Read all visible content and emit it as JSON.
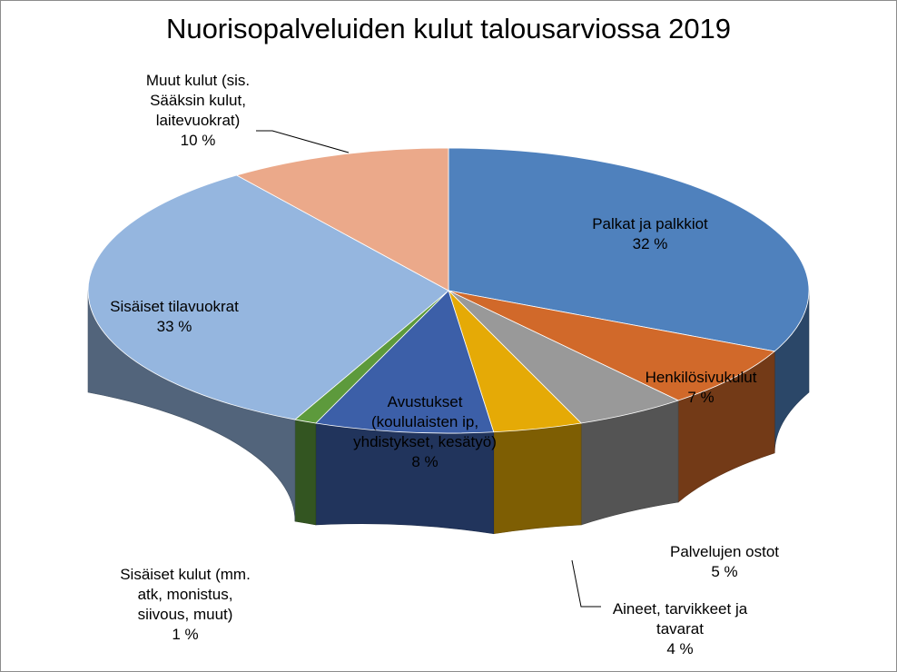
{
  "chart_data": {
    "type": "pie",
    "title": "Nuorisopalveluiden kulut talousarviossa 2019",
    "slices": [
      {
        "label_lines": [
          "Palkat ja palkkiot"
        ],
        "value": 32,
        "value_label": "32 %",
        "color": "#4f81bd"
      },
      {
        "label_lines": [
          "Henkilösivukulut"
        ],
        "value": 7,
        "value_label": "7 %",
        "color": "#d1692a"
      },
      {
        "label_lines": [
          "Palvelujen ostot"
        ],
        "value": 5,
        "value_label": "5 %",
        "color": "#999999"
      },
      {
        "label_lines": [
          "Aineet, tarvikkeet ja",
          "tavarat"
        ],
        "value": 4,
        "value_label": "4 %",
        "color": "#e5aa06"
      },
      {
        "label_lines": [
          "Avustukset",
          "(koululaisten ip,",
          "yhdistykset, kesätyö)"
        ],
        "value": 8,
        "value_label": "8 %",
        "color": "#3c5fa8"
      },
      {
        "label_lines": [
          "Sisäiset kulut (mm.",
          "atk, monistus,",
          "siivous, muut)"
        ],
        "value": 1,
        "value_label": "1 %",
        "color": "#5d9a3c"
      },
      {
        "label_lines": [
          "Sisäiset tilavuokrat"
        ],
        "value": 33,
        "value_label": "33 %",
        "color": "#95b6df"
      },
      {
        "label_lines": [
          "Muut kulut (sis.",
          "Sääksin kulut,",
          "laitevuokrat)"
        ],
        "value": 10,
        "value_label": "10 %",
        "color": "#eba98a"
      }
    ],
    "legend": "none"
  }
}
